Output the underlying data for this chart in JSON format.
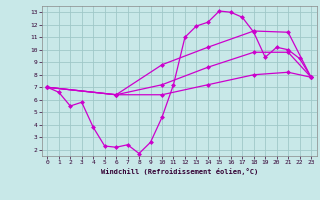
{
  "xlabel": "Windchill (Refroidissement éolien,°C)",
  "xlim": [
    -0.5,
    23.5
  ],
  "ylim": [
    1.5,
    13.5
  ],
  "yticks": [
    2,
    3,
    4,
    5,
    6,
    7,
    8,
    9,
    10,
    11,
    12,
    13
  ],
  "xticks": [
    0,
    1,
    2,
    3,
    4,
    5,
    6,
    7,
    8,
    9,
    10,
    11,
    12,
    13,
    14,
    15,
    16,
    17,
    18,
    19,
    20,
    21,
    22,
    23
  ],
  "bg_color": "#c8e8e8",
  "line_color": "#cc00cc",
  "grid_color": "#a0c8c8",
  "line1_x": [
    0,
    1,
    2,
    3,
    4,
    5,
    6,
    7,
    8,
    9,
    10,
    11,
    12,
    13,
    14,
    15,
    16,
    17,
    18,
    19,
    20,
    21,
    22,
    23
  ],
  "line1_y": [
    7.0,
    6.6,
    5.5,
    5.8,
    3.8,
    2.3,
    2.2,
    2.4,
    1.7,
    2.6,
    4.6,
    7.2,
    11.0,
    11.9,
    12.2,
    13.1,
    13.0,
    12.6,
    11.4,
    9.4,
    10.2,
    10.0,
    9.3,
    7.8
  ],
  "line2_x": [
    0,
    6,
    10,
    14,
    18,
    21,
    23
  ],
  "line2_y": [
    7.0,
    6.4,
    8.8,
    10.2,
    11.5,
    11.4,
    7.8
  ],
  "line3_x": [
    0,
    6,
    10,
    14,
    18,
    21,
    23
  ],
  "line3_y": [
    7.0,
    6.4,
    7.2,
    8.6,
    9.8,
    9.8,
    7.8
  ],
  "line4_x": [
    0,
    6,
    10,
    14,
    18,
    21,
    23
  ],
  "line4_y": [
    7.0,
    6.4,
    6.4,
    7.2,
    8.0,
    8.2,
    7.8
  ]
}
